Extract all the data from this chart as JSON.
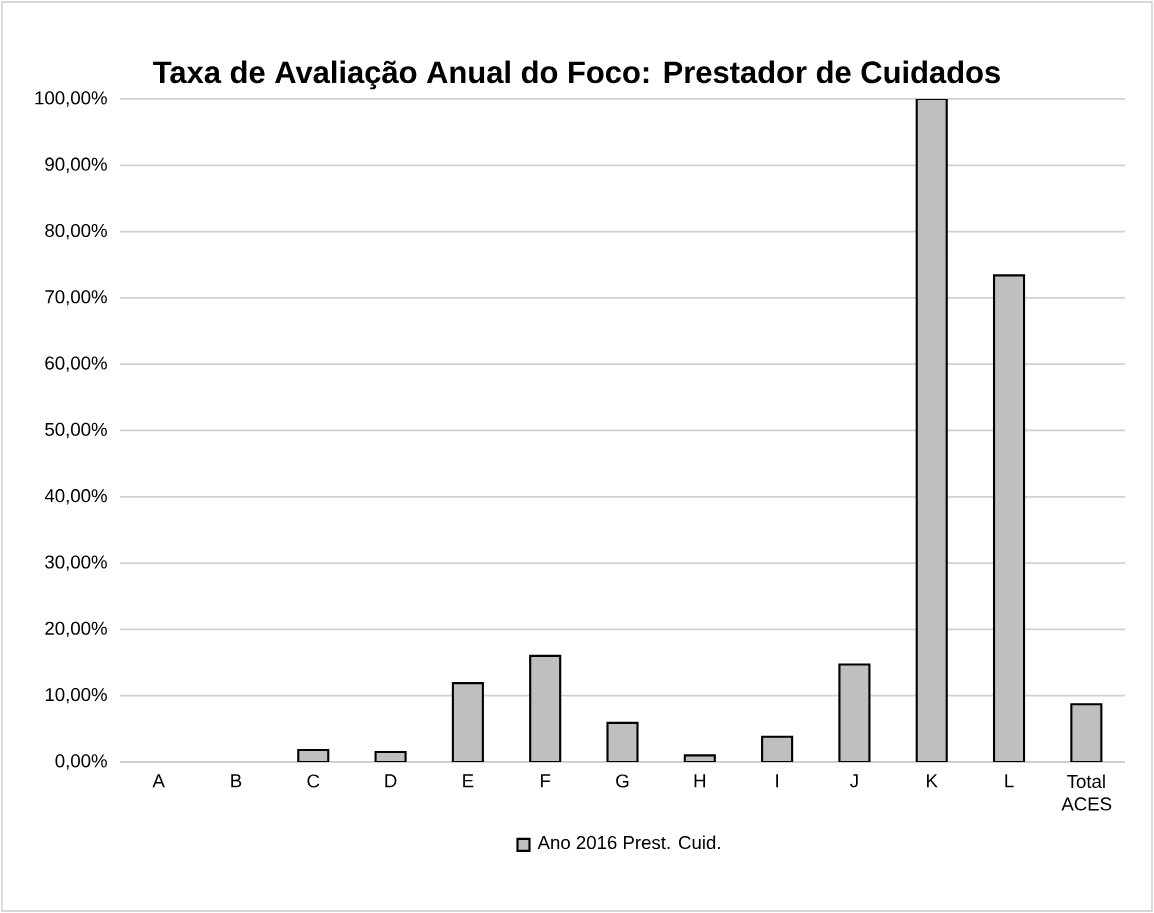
{
  "chart_data": {
    "type": "bar",
    "title": "Taxa de Avaliação Anual do Foco: Prestador de Cuidados",
    "categories": [
      "A",
      "B",
      "C",
      "D",
      "E",
      "F",
      "G",
      "H",
      "I",
      "J",
      "K",
      "L",
      "Total ACES"
    ],
    "series": [
      {
        "name": "Ano 2016 Prest. Cuid.",
        "color": "#bfbfbf",
        "values": [
          0,
          0,
          1.8,
          1.5,
          11.9,
          16.0,
          5.9,
          1.0,
          3.8,
          14.7,
          100,
          73.4,
          8.7
        ]
      }
    ],
    "ylim": [
      0,
      100
    ],
    "yticks": [
      {
        "value": 0,
        "label": "0,00%"
      },
      {
        "value": 10,
        "label": "10,00%"
      },
      {
        "value": 20,
        "label": "20,00%"
      },
      {
        "value": 30,
        "label": "30,00%"
      },
      {
        "value": 40,
        "label": "40,00%"
      },
      {
        "value": 50,
        "label": "50,00%"
      },
      {
        "value": 60,
        "label": "60,00%"
      },
      {
        "value": 70,
        "label": "70,00%"
      },
      {
        "value": 80,
        "label": "80,00%"
      },
      {
        "value": 90,
        "label": "90,00%"
      },
      {
        "value": 100,
        "label": "100,00%"
      }
    ],
    "grid": "y",
    "legend": "bottom"
  }
}
